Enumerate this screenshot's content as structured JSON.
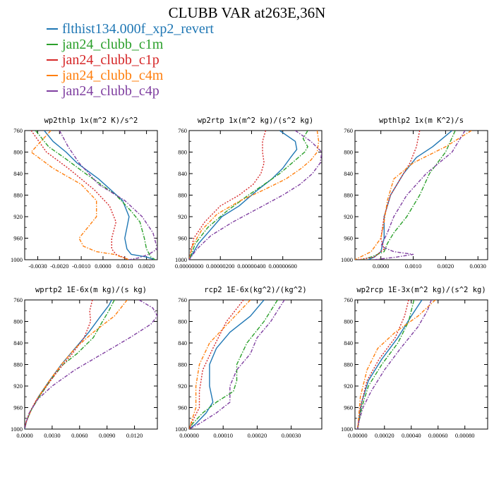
{
  "title": "CLUBB VAR at263E,36N",
  "legend": [
    {
      "name": "flthist134.000f_xp2_revert",
      "color": "#1f77b4"
    },
    {
      "name": "jan24_clubb_c1m",
      "color": "#2ca02c"
    },
    {
      "name": "jan24_clubb_c1p",
      "color": "#d62728"
    },
    {
      "name": "jan24_clubb_c4m",
      "color": "#ff7f0e"
    },
    {
      "name": "jan24_clubb_c4p",
      "color": "#7f3fa0"
    }
  ],
  "chart_data": [
    {
      "type": "line",
      "title": "wp2thlp  1x(m^2 K)/s^2",
      "xlim": [
        -0.0036,
        0.0025
      ],
      "ylim": [
        760,
        1000
      ],
      "y_inverted": true,
      "xticks": [
        -0.003,
        -0.002,
        -0.001,
        0.0,
        0.001,
        0.002
      ],
      "xtick_labels": [
        "-0.0030",
        "-0.0020",
        "-0.0010",
        "0.0000",
        "0.0010",
        "0.0020"
      ],
      "yticks": [
        760,
        800,
        840,
        880,
        920,
        960,
        1000
      ],
      "ytick_labels": [
        "760",
        "800",
        "840",
        "880",
        "920",
        "960",
        "1000"
      ],
      "series": [
        {
          "name": "flthist134.000f_xp2_revert",
          "x": [
            -0.0027,
            -0.0023,
            -0.0017,
            -0.0012,
            -0.0002,
            0.0009,
            0.0012,
            0.0011,
            0.001,
            0.0011,
            0.0013,
            0.002,
            0.0024
          ],
          "y": [
            760,
            780,
            800,
            820,
            850,
            890,
            920,
            940,
            960,
            980,
            990,
            995,
            1000
          ]
        },
        {
          "name": "jan24_clubb_c1m",
          "x": [
            -0.0031,
            -0.0025,
            -0.0018,
            -0.0008,
            0.0006,
            0.0013,
            0.0017,
            0.0019,
            0.002,
            0.0022,
            0.0024
          ],
          "y": [
            760,
            790,
            810,
            840,
            880,
            910,
            930,
            960,
            980,
            995,
            1000
          ]
        },
        {
          "name": "jan24_clubb_c1p",
          "x": [
            -0.0033,
            -0.0026,
            -0.0016,
            -0.0004,
            0.0003,
            0.0006,
            0.0004,
            0.0004,
            0.0006,
            0.0009,
            0.0012
          ],
          "y": [
            760,
            800,
            830,
            870,
            900,
            930,
            960,
            980,
            990,
            995,
            1000
          ]
        },
        {
          "name": "jan24_clubb_c4m",
          "x": [
            -0.0024,
            -0.0033,
            -0.0023,
            -0.001,
            -0.0003,
            -0.0003,
            -0.0007,
            -0.0011,
            -0.0009,
            -0.0003,
            0.0005,
            0.0012
          ],
          "y": [
            760,
            800,
            830,
            860,
            890,
            920,
            940,
            960,
            975,
            985,
            990,
            1000
          ]
        },
        {
          "name": "jan24_clubb_c4p",
          "x": [
            -0.002,
            -0.0016,
            -0.0011,
            -0.0002,
            0.001,
            0.0018,
            0.0023,
            0.0025,
            0.0021,
            0.0016,
            0.0012
          ],
          "y": [
            760,
            790,
            820,
            860,
            890,
            920,
            950,
            980,
            990,
            997,
            1000
          ]
        }
      ]
    },
    {
      "type": "line",
      "title": "wp2rtp  1x(m^2 kg)/(s^2 kg)",
      "xlim": [
        0.0,
        8.5e-06
      ],
      "ylim": [
        760,
        1000
      ],
      "y_inverted": true,
      "xticks": [
        0.0,
        2e-06,
        4e-06,
        6e-06
      ],
      "xtick_labels": [
        "0.00000000",
        "0.00000200",
        "0.00000400",
        "0.00000600"
      ],
      "yticks": [
        760,
        800,
        840,
        880,
        920,
        960,
        1000
      ],
      "ytick_labels": [
        "760",
        "800",
        "840",
        "880",
        "920",
        "960",
        "1000"
      ],
      "series": [
        {
          "name": "flthist134.000f_xp2_revert",
          "x": [
            5.8e-06,
            6.8e-06,
            6.9e-06,
            6.5e-06,
            6e-06,
            5.3e-06,
            4.4e-06,
            3.2e-06,
            2.1e-06,
            1.2e-06,
            6e-07,
            2e-07,
            0.0
          ],
          "y": [
            760,
            780,
            795,
            810,
            830,
            850,
            870,
            900,
            920,
            950,
            970,
            990,
            1000
          ]
        },
        {
          "name": "jan24_clubb_c1m",
          "x": [
            7.6e-06,
            7.3e-06,
            7.6e-06,
            7.4e-06,
            6.6e-06,
            5.8e-06,
            4.8e-06,
            3.8e-06,
            2.4e-06,
            1.2e-06,
            4e-07,
            0.0
          ],
          "y": [
            760,
            775,
            790,
            800,
            820,
            840,
            860,
            880,
            910,
            940,
            970,
            1000
          ]
        },
        {
          "name": "jan24_clubb_c1p",
          "x": [
            4.9e-06,
            4.7e-06,
            4.7e-06,
            4.8e-06,
            4.6e-06,
            4.1e-06,
            3.2e-06,
            2e-06,
            1e-06,
            3e-07,
            0.0
          ],
          "y": [
            760,
            780,
            800,
            820,
            840,
            860,
            880,
            900,
            930,
            960,
            1000
          ]
        },
        {
          "name": "jan24_clubb_c4m",
          "x": [
            8.2e-06,
            8.3e-06,
            8.2e-06,
            7.8e-06,
            7.2e-06,
            6.2e-06,
            4.8e-06,
            3.3e-06,
            1.8e-06,
            8e-07,
            2e-07,
            0.0
          ],
          "y": [
            760,
            780,
            800,
            815,
            830,
            850,
            870,
            890,
            915,
            945,
            975,
            1000
          ]
        },
        {
          "name": "jan24_clubb_c4p",
          "x": [
            6.8e-06,
            7.8e-06,
            8.5e-06,
            8.4e-06,
            7.9e-06,
            7.1e-06,
            6e-06,
            4.4e-06,
            2.8e-06,
            1.4e-06,
            5e-07,
            0.0
          ],
          "y": [
            760,
            780,
            800,
            820,
            840,
            860,
            880,
            905,
            930,
            955,
            980,
            1000
          ]
        }
      ]
    },
    {
      "type": "line",
      "title": "wpthlp2  1x(m K^2)/s",
      "xlim": [
        -0.0008,
        0.0033
      ],
      "ylim": [
        760,
        1000
      ],
      "y_inverted": true,
      "xticks": [
        0.0,
        0.001,
        0.002,
        0.003
      ],
      "xtick_labels": [
        "0.0000",
        "0.0010",
        "0.0020",
        "0.0030"
      ],
      "yticks": [
        760,
        800,
        840,
        880,
        920,
        960,
        1000
      ],
      "ytick_labels": [
        "760",
        "800",
        "840",
        "880",
        "920",
        "960",
        "1000"
      ],
      "series": [
        {
          "name": "flthist134.000f_xp2_revert",
          "x": [
            0.0022,
            0.0016,
            0.0011,
            0.0007,
            0.0003,
            0.0001,
            0.0001,
            0.0,
            -0.0002,
            -0.0004
          ],
          "y": [
            760,
            790,
            810,
            840,
            880,
            920,
            960,
            985,
            995,
            1000
          ]
        },
        {
          "name": "jan24_clubb_c1m",
          "x": [
            0.0023,
            0.002,
            0.0015,
            0.0012,
            0.0008,
            0.0004,
            0.0002,
            0.0001,
            -0.0003,
            -0.0006
          ],
          "y": [
            760,
            800,
            840,
            880,
            920,
            950,
            970,
            985,
            995,
            1000
          ]
        },
        {
          "name": "jan24_clubb_c1p",
          "x": [
            0.0012,
            0.0011,
            0.0009,
            0.0006,
            0.0003,
            0.0001,
            0.0,
            0.0001,
            -0.0002,
            -0.0007
          ],
          "y": [
            760,
            790,
            820,
            850,
            880,
            920,
            960,
            980,
            995,
            1000
          ]
        },
        {
          "name": "jan24_clubb_c4m",
          "x": [
            0.0028,
            0.002,
            0.001,
            0.0004,
            0.0002,
            0.0001,
            0.0,
            -0.0003,
            -0.0008
          ],
          "y": [
            760,
            790,
            820,
            850,
            890,
            930,
            960,
            985,
            1000
          ]
        },
        {
          "name": "jan24_clubb_c4p",
          "x": [
            0.0026,
            0.0022,
            0.0014,
            0.0008,
            0.0004,
            0.0002,
            0.0,
            0.0004,
            0.001,
            0.0005,
            -0.0002
          ],
          "y": [
            760,
            800,
            840,
            880,
            920,
            950,
            975,
            985,
            990,
            995,
            1000
          ]
        }
      ]
    },
    {
      "type": "line",
      "title": "wprtp2  1E-6x(m kg)/(s kg)",
      "xlim": [
        0.0,
        0.0145
      ],
      "ylim": [
        760,
        1000
      ],
      "y_inverted": true,
      "xticks": [
        0.0,
        0.003,
        0.006,
        0.009,
        0.012
      ],
      "xtick_labels": [
        "0.0000",
        "0.0030",
        "0.0060",
        "0.0090",
        "0.0120"
      ],
      "yticks": [
        760,
        800,
        840,
        880,
        920,
        960,
        1000
      ],
      "ytick_labels": [
        "760",
        "800",
        "840",
        "880",
        "920",
        "960",
        "1000"
      ],
      "series": [
        {
          "name": "flthist134.000f_xp2_revert",
          "x": [
            0.0095,
            0.0092,
            0.0083,
            0.007,
            0.0055,
            0.004,
            0.0027,
            0.0015,
            0.0007,
            0.0002,
            0.0
          ],
          "y": [
            760,
            770,
            790,
            820,
            850,
            880,
            910,
            940,
            965,
            985,
            1000
          ]
        },
        {
          "name": "jan24_clubb_c1m",
          "x": [
            0.0098,
            0.0092,
            0.0085,
            0.0075,
            0.0057,
            0.0042,
            0.0028,
            0.0016,
            0.0007,
            0.0002,
            0.0
          ],
          "y": [
            760,
            780,
            800,
            830,
            860,
            880,
            910,
            940,
            965,
            985,
            1000
          ]
        },
        {
          "name": "jan24_clubb_c1p",
          "x": [
            0.0074,
            0.0071,
            0.0072,
            0.0065,
            0.0052,
            0.0037,
            0.0024,
            0.0013,
            0.0005,
            0.0001,
            0.0
          ],
          "y": [
            760,
            780,
            800,
            830,
            860,
            890,
            920,
            945,
            970,
            990,
            1000
          ]
        },
        {
          "name": "jan24_clubb_c4m",
          "x": [
            0.0112,
            0.0098,
            0.0075,
            0.0055,
            0.004,
            0.0027,
            0.0015,
            0.0007,
            0.0002,
            0.0
          ],
          "y": [
            760,
            790,
            820,
            850,
            880,
            910,
            940,
            965,
            985,
            1000
          ]
        },
        {
          "name": "jan24_clubb_c4p",
          "x": [
            0.0125,
            0.014,
            0.0145,
            0.0138,
            0.0115,
            0.0085,
            0.0055,
            0.003,
            0.0014,
            0.0005,
            0.0001,
            0.0
          ],
          "y": [
            760,
            775,
            790,
            805,
            830,
            860,
            890,
            920,
            945,
            970,
            990,
            1000
          ]
        }
      ]
    },
    {
      "type": "line",
      "title": "rcp2  1E-6x(kg^2)/(kg^2)",
      "xlim": [
        0.0,
        0.00039
      ],
      "ylim": [
        760,
        1000
      ],
      "y_inverted": true,
      "xticks": [
        0.0,
        0.0001,
        0.0002,
        0.0003
      ],
      "xtick_labels": [
        "0.00000",
        "0.00010",
        "0.00020",
        "0.00030"
      ],
      "yticks": [
        760,
        800,
        840,
        880,
        920,
        960,
        1000
      ],
      "ytick_labels": [
        "760",
        "800",
        "840",
        "880",
        "920",
        "960",
        "1000"
      ],
      "series": [
        {
          "name": "flthist134.000f_xp2_revert",
          "x": [
            0.00022,
            0.00018,
            0.00012,
            8e-05,
            6e-05,
            6e-05,
            7e-05,
            5e-05,
            2e-05,
            0.0
          ],
          "y": [
            760,
            790,
            820,
            850,
            880,
            920,
            950,
            970,
            990,
            1000
          ]
        },
        {
          "name": "jan24_clubb_c1m",
          "x": [
            0.00026,
            0.00022,
            0.00017,
            0.00014,
            0.00014,
            0.00013,
            8e-05,
            4e-05,
            1e-05,
            0.0
          ],
          "y": [
            760,
            800,
            840,
            880,
            910,
            930,
            950,
            970,
            990,
            1000
          ]
        },
        {
          "name": "jan24_clubb_c1p",
          "x": [
            0.00016,
            0.00011,
            7e-05,
            4e-05,
            3e-05,
            3e-05,
            1e-05,
            0.0
          ],
          "y": [
            760,
            800,
            850,
            890,
            930,
            960,
            985,
            1000
          ]
        },
        {
          "name": "jan24_clubb_c4m",
          "x": [
            0.00018,
            0.00012,
            6e-05,
            3e-05,
            2e-05,
            2e-05,
            0.0
          ],
          "y": [
            760,
            800,
            840,
            880,
            920,
            960,
            1000
          ]
        },
        {
          "name": "jan24_clubb_c4p",
          "x": [
            0.00028,
            0.00024,
            0.0002,
            0.00018,
            0.00014,
            0.00012,
            0.00012,
            8e-05,
            3e-05,
            0.0
          ],
          "y": [
            760,
            800,
            830,
            860,
            890,
            920,
            950,
            970,
            990,
            1000
          ]
        }
      ]
    },
    {
      "type": "line",
      "title": "wp2rcp  1E-3x(m^2 kg)/(s^2 kg)",
      "xlim": [
        -2e-05,
        0.00097
      ],
      "ylim": [
        760,
        1000
      ],
      "y_inverted": true,
      "xticks": [
        0.0,
        0.0002,
        0.0004,
        0.0006,
        0.0008
      ],
      "xtick_labels": [
        "0.00000",
        "0.00020",
        "0.00040",
        "0.00060",
        "0.00080"
      ],
      "yticks": [
        760,
        800,
        840,
        880,
        920,
        960,
        1000
      ],
      "ytick_labels": [
        "760",
        "800",
        "840",
        "880",
        "920",
        "960",
        "1000"
      ],
      "series": [
        {
          "name": "flthist134.000f_xp2_revert",
          "x": [
            0.00048,
            0.0004,
            0.0003,
            0.00018,
            8e-05,
            3e-05,
            1e-05,
            0.0
          ],
          "y": [
            760,
            790,
            830,
            870,
            910,
            950,
            980,
            1000
          ]
        },
        {
          "name": "jan24_clubb_c1m",
          "x": [
            0.00042,
            0.00038,
            0.0003,
            0.00018,
            8e-05,
            3e-05,
            0.0
          ],
          "y": [
            760,
            800,
            840,
            880,
            920,
            960,
            1000
          ]
        },
        {
          "name": "jan24_clubb_c1p",
          "x": [
            0.00038,
            0.00035,
            0.00028,
            0.00016,
            7e-05,
            2e-05,
            0.0
          ],
          "y": [
            760,
            790,
            830,
            870,
            910,
            960,
            1000
          ]
        },
        {
          "name": "jan24_clubb_c4m",
          "x": [
            0.00058,
            0.00045,
            0.00028,
            0.00015,
            7e-05,
            2e-05,
            0.0
          ],
          "y": [
            760,
            790,
            820,
            850,
            890,
            940,
            1000
          ]
        },
        {
          "name": "jan24_clubb_c4p",
          "x": [
            0.00055,
            0.00052,
            0.00045,
            0.00032,
            0.0002,
            0.0001,
            4e-05,
            1e-05,
            0.0
          ],
          "y": [
            760,
            780,
            810,
            850,
            890,
            930,
            960,
            985,
            1000
          ]
        }
      ]
    }
  ]
}
